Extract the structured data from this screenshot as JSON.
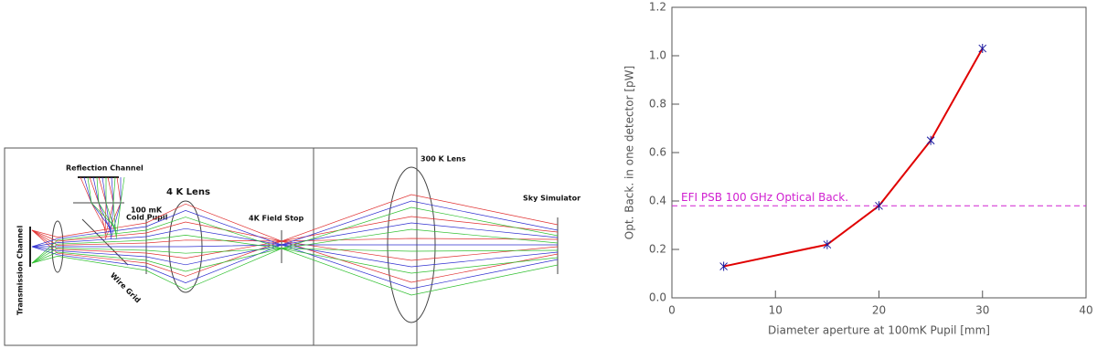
{
  "diagram": {
    "labels": {
      "reflection": "Reflection Channel",
      "pupil_line1": "100 mK",
      "pupil_line2": "Cold Pupil",
      "lens4k": "4 K Lens",
      "stop": "4K Field Stop",
      "lens300k": "300 K Lens",
      "sky": "Sky Simulator",
      "transmission": "Transmission Channel",
      "grid": "Wire Grid"
    }
  },
  "chart_data": {
    "type": "line",
    "x_label": "Diameter aperture at 100mK Pupil [mm]",
    "y_label": "Opt. Back. in one detector [pW]",
    "x": [
      5,
      15,
      20,
      25,
      30
    ],
    "series": [
      {
        "color": "#e00000",
        "marker_color": "#1a1aa0",
        "values": [
          0.13,
          0.22,
          0.38,
          0.65,
          1.03
        ]
      }
    ],
    "reference_line": {
      "value": 0.38,
      "label": "EFI PSB 100 GHz Optical Back.",
      "color": "#d020d0"
    },
    "xlim": [
      0,
      40
    ],
    "xticks": [
      0,
      10,
      20,
      30,
      40
    ],
    "ylim": [
      0,
      1.2
    ],
    "yticks": [
      {
        "value": 0,
        "label": "0.0"
      },
      0.2,
      0.4,
      0.6,
      0.8,
      {
        "value": 1,
        "label": "1.0"
      },
      1.2
    ]
  }
}
